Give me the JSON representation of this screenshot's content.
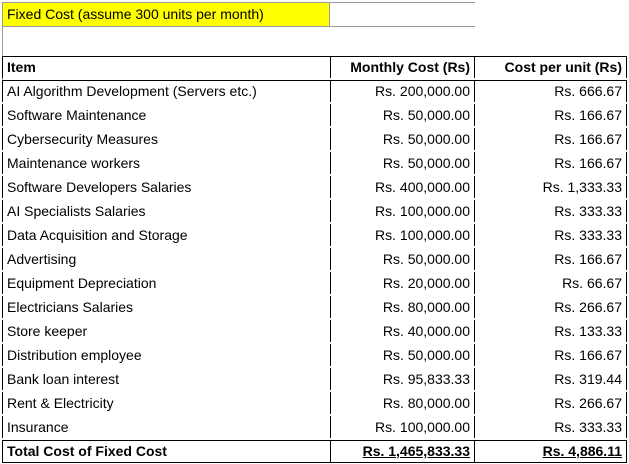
{
  "title": "Fixed Cost (assume 300 units per month)",
  "headers": {
    "item": "Item",
    "monthly": "Monthly Cost (Rs)",
    "unit": "Cost per unit (Rs)"
  },
  "rows": [
    {
      "item": "AI Algorithm Development (Servers etc.)",
      "monthly": "Rs. 200,000.00",
      "unit": "Rs. 666.67"
    },
    {
      "item": "Software Maintenance",
      "monthly": "Rs. 50,000.00",
      "unit": "Rs. 166.67"
    },
    {
      "item": "Cybersecurity Measures",
      "monthly": "Rs. 50,000.00",
      "unit": "Rs. 166.67"
    },
    {
      "item": "Maintenance workers",
      "monthly": "Rs. 50,000.00",
      "unit": "Rs. 166.67"
    },
    {
      "item": "Software Developers Salaries",
      "monthly": "Rs. 400,000.00",
      "unit": "Rs. 1,333.33"
    },
    {
      "item": "AI Specialists Salaries",
      "monthly": "Rs. 100,000.00",
      "unit": "Rs. 333.33"
    },
    {
      "item": "Data Acquisition and Storage",
      "monthly": "Rs. 100,000.00",
      "unit": "Rs. 333.33"
    },
    {
      "item": "Advertising",
      "monthly": "Rs. 50,000.00",
      "unit": "Rs. 166.67"
    },
    {
      "item": "Equipment Depreciation",
      "monthly": "Rs. 20,000.00",
      "unit": "Rs. 66.67"
    },
    {
      "item": "Electricians Salaries",
      "monthly": "Rs. 80,000.00",
      "unit": "Rs. 266.67"
    },
    {
      "item": "Store keeper",
      "monthly": "Rs. 40,000.00",
      "unit": "Rs. 133.33"
    },
    {
      "item": "Distribution employee",
      "monthly": "Rs. 50,000.00",
      "unit": "Rs. 166.67"
    },
    {
      "item": "Bank loan interest",
      "monthly": "Rs. 95,833.33",
      "unit": "Rs. 319.44"
    },
    {
      "item": "Rent & Electricity",
      "monthly": "Rs. 80,000.00",
      "unit": "Rs. 266.67"
    },
    {
      "item": "Insurance",
      "monthly": "Rs. 100,000.00",
      "unit": "Rs. 333.33"
    }
  ],
  "total": {
    "item": "Total Cost of Fixed Cost",
    "monthly": "Rs. 1,465,833.33",
    "unit": "Rs. 4,886.11"
  }
}
